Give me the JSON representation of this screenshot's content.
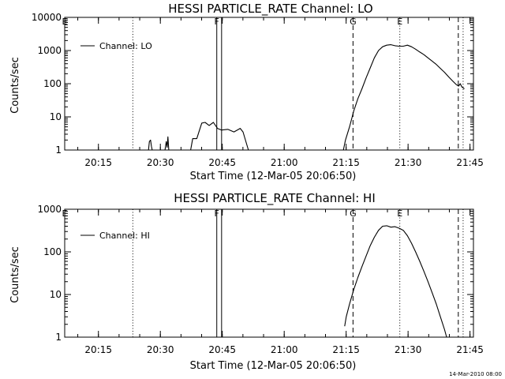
{
  "footer": {
    "timestamp": "14-Mar-2010 08:00"
  },
  "chart_data": [
    {
      "type": "line",
      "title": "HESSI PARTICLE_RATE Channel: LO",
      "xlabel": "Start Time (12-Mar-05 20:06:50)",
      "ylabel": "Counts/sec",
      "y_scale": "log",
      "ylim": [
        1,
        10000
      ],
      "xlim_minutes": [
        0,
        99
      ],
      "x_ticks": [
        "20:15",
        "20:30",
        "20:45",
        "21:00",
        "21:15",
        "21:30",
        "21:45"
      ],
      "y_ticks": [
        "1",
        "10",
        "100",
        "1000",
        "10000"
      ],
      "legend": {
        "position": "top-left",
        "entries": [
          "Channel: LO"
        ]
      },
      "markers": [
        {
          "label": "E",
          "time": "20:06:50",
          "style": "none"
        },
        {
          "label": "",
          "time": "20:23:20",
          "style": "dotted"
        },
        {
          "label": "F",
          "time": "20:43:40",
          "style": "solid"
        },
        {
          "label": "",
          "time": "20:44:50",
          "style": "solid"
        },
        {
          "label": "G",
          "time": "21:16:40",
          "style": "dashed"
        },
        {
          "label": "E",
          "time": "21:28:00",
          "style": "dotted"
        },
        {
          "label": "",
          "time": "21:42:10",
          "style": "dashed"
        },
        {
          "label": "",
          "time": "21:43:20",
          "style": "dotted"
        }
      ],
      "series": [
        {
          "name": "Channel: LO",
          "segments": [
            [
              [
                20.3,
                1
              ],
              [
                20.5,
                1.8
              ],
              [
                20.8,
                2.0
              ],
              [
                21.0,
                1.3
              ],
              [
                21.2,
                1
              ]
            ],
            [
              [
                24.3,
                1
              ],
              [
                24.6,
                1.8
              ],
              [
                24.8,
                1.2
              ],
              [
                25.0,
                2.5
              ],
              [
                25.2,
                1
              ]
            ],
            [
              [
                30.5,
                1
              ],
              [
                31.0,
                2.2
              ],
              [
                32.0,
                2.2
              ],
              [
                32.5,
                3.5
              ],
              [
                33.2,
                6.5
              ],
              [
                34.0,
                6.8
              ],
              [
                35.0,
                5.5
              ],
              [
                36.0,
                6.8
              ],
              [
                37.0,
                4.5
              ],
              [
                38.0,
                4.0
              ],
              [
                39.5,
                4.2
              ],
              [
                41.0,
                3.5
              ],
              [
                42.5,
                4.5
              ],
              [
                43.2,
                3.5
              ],
              [
                44.5,
                1
              ]
            ],
            [
              [
                67.5,
                1
              ],
              [
                68.0,
                2
              ],
              [
                69.0,
                5
              ],
              [
                70.0,
                15
              ],
              [
                71.0,
                35
              ],
              [
                72.0,
                70
              ],
              [
                73.0,
                150
              ],
              [
                74.0,
                300
              ],
              [
                75.0,
                600
              ],
              [
                76.0,
                1000
              ],
              [
                77.0,
                1300
              ],
              [
                78.0,
                1450
              ],
              [
                79.0,
                1500
              ],
              [
                80.0,
                1400
              ],
              [
                81.0,
                1350
              ],
              [
                82.0,
                1350
              ],
              [
                83.0,
                1450
              ],
              [
                84.0,
                1300
              ],
              [
                85.0,
                1100
              ],
              [
                86.0,
                900
              ],
              [
                87.0,
                750
              ],
              [
                88.0,
                600
              ],
              [
                89.0,
                480
              ],
              [
                90.0,
                380
              ],
              [
                91.0,
                290
              ],
              [
                92.0,
                220
              ],
              [
                93.0,
                160
              ],
              [
                94.0,
                120
              ],
              [
                94.8,
                95
              ],
              [
                95.4,
                85
              ],
              [
                95.8,
                100
              ],
              [
                96.2,
                80
              ],
              [
                96.8,
                70
              ]
            ]
          ]
        }
      ]
    },
    {
      "type": "line",
      "title": "HESSI PARTICLE_RATE Channel: HI",
      "xlabel": "Start Time (12-Mar-05 20:06:50)",
      "ylabel": "Counts/sec",
      "y_scale": "log",
      "ylim": [
        1,
        1000
      ],
      "xlim_minutes": [
        0,
        99
      ],
      "x_ticks": [
        "20:15",
        "20:30",
        "20:45",
        "21:00",
        "21:15",
        "21:30",
        "21:45"
      ],
      "y_ticks": [
        "1",
        "10",
        "100",
        "1000"
      ],
      "legend": {
        "position": "top-left",
        "entries": [
          "Channel: HI"
        ]
      },
      "markers": [
        {
          "label": "E",
          "time": "20:06:50",
          "style": "none"
        },
        {
          "label": "",
          "time": "20:23:20",
          "style": "dotted"
        },
        {
          "label": "F",
          "time": "20:43:40",
          "style": "solid"
        },
        {
          "label": "",
          "time": "20:44:50",
          "style": "solid"
        },
        {
          "label": "G",
          "time": "21:16:40",
          "style": "dashed"
        },
        {
          "label": "E",
          "time": "21:28:00",
          "style": "dotted"
        },
        {
          "label": "",
          "time": "21:42:10",
          "style": "dashed"
        },
        {
          "label": "",
          "time": "21:43:20",
          "style": "dotted"
        }
      ],
      "series": [
        {
          "name": "Channel: HI",
          "segments": [
            [
              [
                67.8,
                1.8
              ],
              [
                68.2,
                3
              ],
              [
                69.0,
                6
              ],
              [
                70.0,
                13
              ],
              [
                71.0,
                25
              ],
              [
                72.0,
                45
              ],
              [
                73.0,
                80
              ],
              [
                74.0,
                140
              ],
              [
                75.0,
                220
              ],
              [
                76.0,
                320
              ],
              [
                77.0,
                400
              ],
              [
                78.0,
                410
              ],
              [
                79.0,
                380
              ],
              [
                80.0,
                390
              ],
              [
                81.0,
                360
              ],
              [
                82.0,
                320
              ],
              [
                83.0,
                240
              ],
              [
                84.0,
                160
              ],
              [
                85.0,
                100
              ],
              [
                86.0,
                60
              ],
              [
                87.0,
                35
              ],
              [
                88.0,
                20
              ],
              [
                89.0,
                11
              ],
              [
                90.0,
                6
              ],
              [
                91.0,
                3
              ],
              [
                92.0,
                1.5
              ],
              [
                92.5,
                1
              ]
            ]
          ]
        }
      ]
    }
  ]
}
